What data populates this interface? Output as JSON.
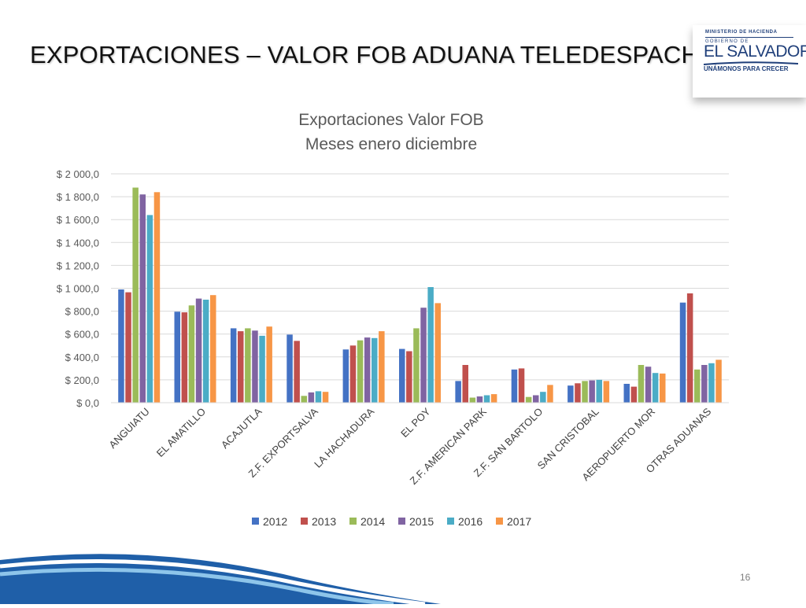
{
  "slide": {
    "title": "EXPORTACIONES –  VALOR FOB ADUANA TELEDESPACHO",
    "page_number": "16"
  },
  "logo": {
    "ministry": "MINISTERIO DE HACIENDA",
    "gobierno": "GOBIERNO DE",
    "country": "EL SALVADOR",
    "slogan": "UNÁMONOS PARA CRECER"
  },
  "colors": {
    "2012": "#4472C4",
    "2013": "#C0504D",
    "2014": "#9BBB59",
    "2015": "#8064A2",
    "2016": "#4BACC6",
    "2017": "#F79646",
    "logo_blue": "#1f3f7a",
    "swoosh_blue": "#1f5fa8"
  },
  "chart_data": {
    "type": "bar",
    "title": "Exportaciones Valor FOB",
    "subtitle": "Meses enero diciembre",
    "xlabel": "",
    "ylabel": "",
    "ylim": [
      0,
      2000
    ],
    "yticks": [
      "$ 0,0",
      "$ 200,0",
      "$ 400,0",
      "$ 600,0",
      "$ 800,0",
      "$ 1 000,0",
      "$ 1 200,0",
      "$ 1 400,0",
      "$ 1 600,0",
      "$ 1 800,0",
      "$ 2 000,0"
    ],
    "grid": true,
    "legend_position": "bottom",
    "categories": [
      "ANGUIATU",
      "EL AMATILLO",
      "ACAJUTLA",
      "Z.F. EXPORTSALVA",
      "LA HACHADURA",
      "EL POY",
      "Z.F. AMERICAN PARK",
      "Z.F. SAN BARTOLO",
      "SAN CRISTOBAL",
      "AEROPUERTO MOR",
      "OTRAS ADUANAS"
    ],
    "series": [
      {
        "name": "2012",
        "values": [
          990,
          795,
          650,
          595,
          465,
          470,
          190,
          290,
          150,
          165,
          875
        ]
      },
      {
        "name": "2013",
        "values": [
          965,
          790,
          625,
          540,
          500,
          450,
          330,
          300,
          170,
          140,
          955
        ]
      },
      {
        "name": "2014",
        "values": [
          1880,
          850,
          650,
          60,
          545,
          650,
          45,
          50,
          190,
          330,
          290
        ]
      },
      {
        "name": "2015",
        "values": [
          1820,
          910,
          630,
          90,
          570,
          830,
          55,
          65,
          195,
          315,
          330
        ]
      },
      {
        "name": "2016",
        "values": [
          1640,
          900,
          585,
          100,
          565,
          1010,
          65,
          95,
          200,
          260,
          345
        ]
      },
      {
        "name": "2017",
        "values": [
          1840,
          940,
          665,
          95,
          625,
          870,
          75,
          155,
          190,
          255,
          375
        ]
      }
    ]
  }
}
